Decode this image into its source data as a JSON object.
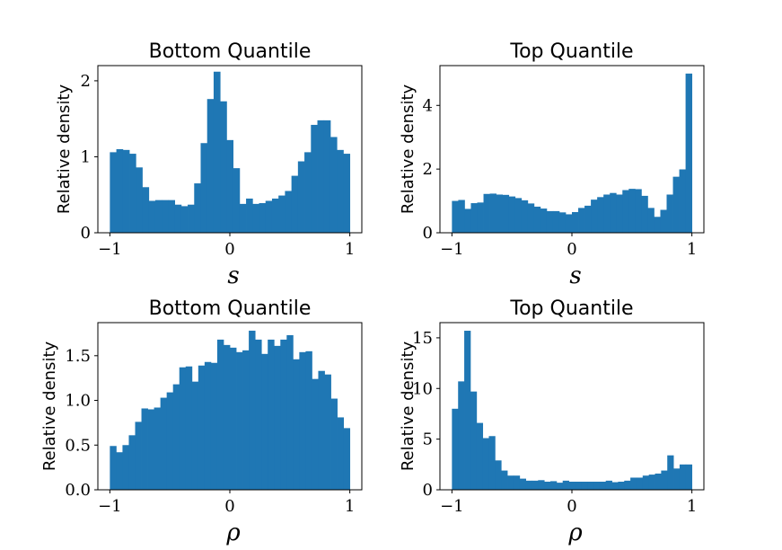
{
  "style": {
    "bar_color": "#1f77b4"
  },
  "chart_data": [
    {
      "type": "bar",
      "title": "Bottom Quantile",
      "xlabel": "s",
      "ylabel": "Relative density",
      "xlim": [
        -1.1,
        1.1
      ],
      "ylim": [
        0,
        2.2
      ],
      "xticks": [
        {
          "v": -1,
          "label": "−1"
        },
        {
          "v": 0,
          "label": "0"
        },
        {
          "v": 1,
          "label": "1"
        }
      ],
      "yticks": [
        {
          "v": 0,
          "label": "0"
        },
        {
          "v": 1,
          "label": "1"
        },
        {
          "v": 2,
          "label": "2"
        }
      ],
      "bin_range": [
        -1,
        1
      ],
      "values": [
        1.06,
        1.1,
        1.09,
        1.04,
        0.86,
        0.6,
        0.42,
        0.43,
        0.43,
        0.43,
        0.37,
        0.35,
        0.37,
        0.65,
        1.18,
        1.76,
        2.12,
        1.73,
        1.22,
        0.85,
        0.38,
        0.45,
        0.38,
        0.39,
        0.42,
        0.45,
        0.49,
        0.55,
        0.75,
        0.94,
        1.06,
        1.42,
        1.48,
        1.48,
        1.26,
        1.09,
        1.04
      ]
    },
    {
      "type": "bar",
      "title": "Top Quantile",
      "xlabel": "s",
      "ylabel": "Relative density",
      "xlim": [
        -1.1,
        1.1
      ],
      "ylim": [
        0,
        5.25
      ],
      "xticks": [
        {
          "v": -1,
          "label": "−1"
        },
        {
          "v": 0,
          "label": "0"
        },
        {
          "v": 1,
          "label": "1"
        }
      ],
      "yticks": [
        {
          "v": 0,
          "label": "0"
        },
        {
          "v": 2,
          "label": "2"
        },
        {
          "v": 4,
          "label": "4"
        }
      ],
      "bin_range": [
        -1,
        1
      ],
      "values": [
        1.0,
        1.03,
        0.75,
        0.93,
        0.95,
        1.22,
        1.23,
        1.2,
        1.19,
        1.14,
        1.09,
        1.02,
        0.92,
        0.82,
        0.76,
        0.68,
        0.68,
        0.64,
        0.58,
        0.65,
        0.78,
        0.85,
        1.04,
        1.12,
        1.2,
        1.25,
        1.2,
        1.34,
        1.38,
        1.37,
        1.16,
        0.78,
        0.5,
        0.72,
        1.2,
        1.76,
        1.99,
        5.0
      ]
    },
    {
      "type": "bar",
      "title": "Bottom Quantile",
      "xlabel": "ρ",
      "ylabel": "Relative density",
      "xlim": [
        -1.1,
        1.1
      ],
      "ylim": [
        0,
        1.87
      ],
      "xticks": [
        {
          "v": -1,
          "label": "−1"
        },
        {
          "v": 0,
          "label": "0"
        },
        {
          "v": 1,
          "label": "1"
        }
      ],
      "yticks": [
        {
          "v": 0,
          "label": "0.0"
        },
        {
          "v": 0.5,
          "label": "0.5"
        },
        {
          "v": 1.0,
          "label": "1.0"
        },
        {
          "v": 1.5,
          "label": "1.5"
        }
      ],
      "bin_range": [
        -1,
        1
      ],
      "values": [
        0.49,
        0.42,
        0.5,
        0.61,
        0.76,
        0.91,
        0.9,
        0.92,
        1.03,
        1.09,
        1.18,
        1.37,
        1.38,
        1.21,
        1.39,
        1.43,
        1.42,
        1.68,
        1.62,
        1.59,
        1.54,
        1.56,
        1.78,
        1.68,
        1.52,
        1.68,
        1.61,
        1.68,
        1.73,
        1.46,
        1.54,
        1.55,
        1.24,
        1.33,
        1.29,
        1.02,
        0.81,
        0.69
      ]
    },
    {
      "type": "bar",
      "title": "Top Quantile",
      "xlabel": "ρ",
      "ylabel": "Relative density",
      "xlim": [
        -1.1,
        1.1
      ],
      "ylim": [
        0,
        16.5
      ],
      "xticks": [
        {
          "v": -1,
          "label": "−1"
        },
        {
          "v": 0,
          "label": "0"
        },
        {
          "v": 1,
          "label": "1"
        }
      ],
      "yticks": [
        {
          "v": 0,
          "label": "0"
        },
        {
          "v": 5,
          "label": "5"
        },
        {
          "v": 10,
          "label": "10"
        },
        {
          "v": 15,
          "label": "15"
        }
      ],
      "bin_range": [
        -1,
        1
      ],
      "values": [
        8.0,
        10.7,
        15.7,
        9.7,
        6.6,
        5.1,
        5.3,
        2.9,
        1.9,
        1.4,
        1.4,
        1.1,
        0.9,
        0.9,
        0.95,
        0.8,
        0.85,
        0.7,
        0.9,
        0.8,
        0.8,
        0.8,
        0.8,
        0.8,
        0.8,
        0.9,
        0.75,
        0.8,
        0.9,
        1.2,
        1.2,
        1.4,
        1.5,
        1.6,
        1.9,
        3.4,
        2.1,
        2.5,
        2.5
      ]
    }
  ]
}
